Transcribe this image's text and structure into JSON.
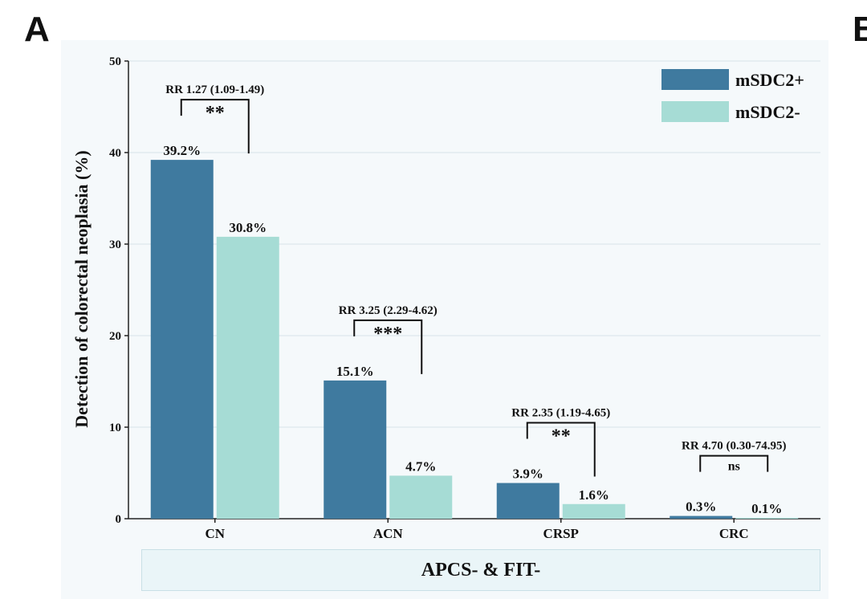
{
  "panel_labels": {
    "a": "A",
    "b": "B"
  },
  "chart_data": {
    "type": "bar",
    "title": "",
    "ylabel": "Detection of  colorectal neoplasia (%)",
    "xlabel": "APCS- & FIT-",
    "ylim": [
      0,
      50
    ],
    "yticks": [
      0,
      10,
      20,
      30,
      40,
      50
    ],
    "grid": true,
    "legend_position": "top-right",
    "categories": [
      "CN",
      "ACN",
      "CRSP",
      "CRC"
    ],
    "series": [
      {
        "name": "mSDC2+",
        "color": "#3f7a9f",
        "values": [
          39.2,
          15.1,
          3.9,
          0.3
        ],
        "labels": [
          "39.2%",
          "15.1%",
          "3.9%",
          "0.3%"
        ]
      },
      {
        "name": "mSDC2-",
        "color": "#a6dcd5",
        "values": [
          30.8,
          4.7,
          1.6,
          0.1
        ],
        "labels": [
          "30.8%",
          "4.7%",
          "1.6%",
          "0.1%"
        ]
      }
    ],
    "annotations": [
      {
        "category": "CN",
        "rr": "RR 1.27 (1.09-1.49)",
        "sig": "**"
      },
      {
        "category": "ACN",
        "rr": "RR 3.25 (2.29-4.62)",
        "sig": "***"
      },
      {
        "category": "CRSP",
        "rr": "RR 2.35 (1.19-4.65)",
        "sig": "**"
      },
      {
        "category": "CRC",
        "rr": "RR 4.70 (0.30-74.95)",
        "sig": "ns"
      }
    ]
  }
}
